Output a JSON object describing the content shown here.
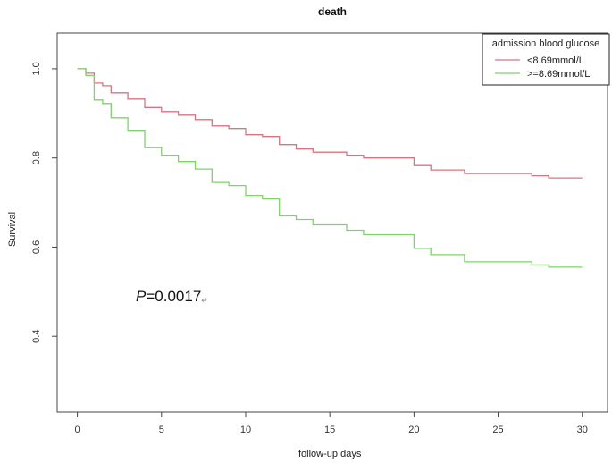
{
  "chart_data": {
    "type": "line",
    "title": "death",
    "xlabel": "follow-up days",
    "ylabel": "Survival",
    "xlim": [
      -1.2,
      31.5
    ],
    "ylim": [
      0.23,
      1.08
    ],
    "x_ticks": [
      0,
      5,
      10,
      15,
      20,
      25,
      30
    ],
    "y_ticks": [
      0.4,
      0.6,
      0.8,
      1.0
    ],
    "y_tick_labels": [
      "0.4",
      "0.6",
      "0.8",
      "1.0"
    ],
    "legend": {
      "title": "admission blood glucose",
      "position": "top-right"
    },
    "annotation": {
      "italic": "P",
      "text": "=0.0017",
      "mark": "↵"
    },
    "step": true,
    "series": [
      {
        "name": "<8.69mmol/L",
        "color": "#d9737f",
        "x": [
          0,
          0.5,
          1.0,
          1.5,
          2,
          3,
          4,
          5,
          6,
          7,
          8,
          9,
          10,
          11,
          12,
          13,
          14,
          16,
          17,
          20,
          21,
          23,
          27,
          28,
          30
        ],
        "y": [
          1.0,
          0.99,
          0.968,
          0.962,
          0.946,
          0.932,
          0.913,
          0.904,
          0.896,
          0.886,
          0.872,
          0.866,
          0.852,
          0.848,
          0.83,
          0.82,
          0.813,
          0.806,
          0.8,
          0.783,
          0.773,
          0.765,
          0.76,
          0.755,
          0.755
        ]
      },
      {
        "name": ">=8.69mmol/L",
        "color": "#7ed36b",
        "x": [
          0,
          0.5,
          1.0,
          1.5,
          2,
          3,
          4,
          5,
          6,
          7,
          8,
          9,
          10,
          11,
          12,
          13,
          14,
          16,
          17,
          20,
          21,
          23,
          27,
          28,
          30
        ],
        "y": [
          1.0,
          0.985,
          0.93,
          0.922,
          0.89,
          0.86,
          0.823,
          0.806,
          0.792,
          0.775,
          0.745,
          0.738,
          0.716,
          0.708,
          0.67,
          0.662,
          0.65,
          0.638,
          0.628,
          0.597,
          0.583,
          0.567,
          0.56,
          0.555,
          0.555
        ]
      }
    ]
  }
}
